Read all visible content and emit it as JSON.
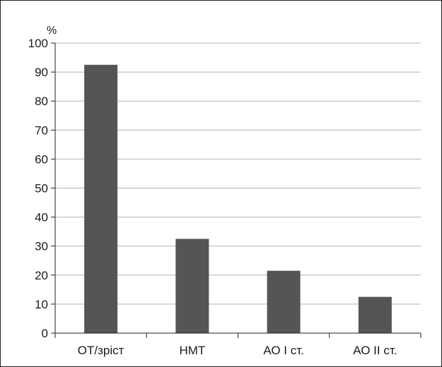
{
  "chart_data": {
    "type": "bar",
    "categories": [
      "ОТ/зріст",
      "НМТ",
      "АО І ст.",
      "АО ІІ ст."
    ],
    "values": [
      92.5,
      32.5,
      21.5,
      12.5
    ],
    "ylabel": "%",
    "ylim": [
      0,
      100
    ],
    "yticks": [
      "0",
      "10",
      "20",
      "30",
      "40",
      "50",
      "60",
      "70",
      "80",
      "90",
      "100"
    ],
    "grid": true,
    "legend": "none",
    "colors": {
      "bar": "#555555",
      "grid": "#b4b4b4",
      "axis": "#222222"
    }
  }
}
